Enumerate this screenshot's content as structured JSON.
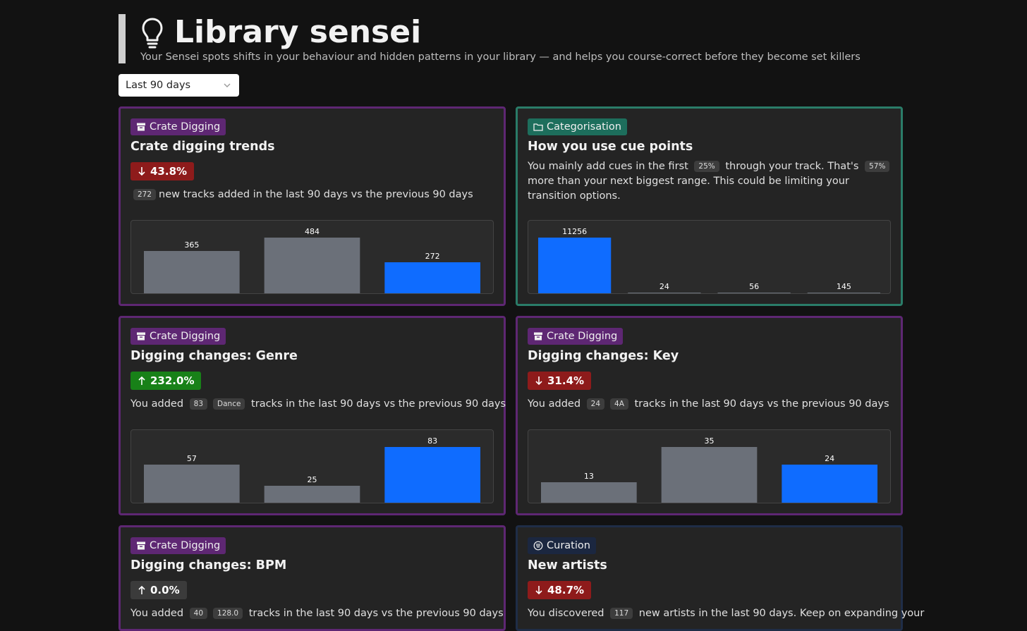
{
  "header": {
    "title": "Library sensei",
    "subtitle": "Your Sensei spots shifts in your behaviour and hidden patterns in your library — and helps you course-correct before they become set killers"
  },
  "period_select": {
    "value": "Last 90 days"
  },
  "colors": {
    "gray_bar": "#6b7079",
    "blue_bar": "#0f6cff",
    "purple": "#5e2773",
    "teal": "#1d6e5c"
  },
  "cards": [
    {
      "tag": "Crate Digging",
      "tag_icon": "archive-icon",
      "title": "Crate digging trends",
      "delta": {
        "direction": "down",
        "value": "43.8%"
      },
      "desc": {
        "pill": "272",
        "text": "new tracks added in the last 90 days vs the previous 90 days"
      },
      "chart_data": {
        "type": "bar",
        "values": [
          365,
          484,
          272
        ],
        "labels": [
          "365",
          "484",
          "272"
        ],
        "highlight_index": 2
      }
    },
    {
      "tag": "Categorisation",
      "tag_icon": "folder-icon",
      "title": "How you use cue points",
      "desc": {
        "t1": "You mainly add cues in the first",
        "p1": "25%",
        "t2": "through your track. That's",
        "p2": "57%",
        "t3": "more than your next biggest range. This could be limiting your transition options."
      },
      "chart_data": {
        "type": "bar",
        "values": [
          11256,
          24,
          56,
          145
        ],
        "labels": [
          "11256",
          "24",
          "56",
          "145"
        ],
        "highlight_index": 0
      }
    },
    {
      "tag": "Crate Digging",
      "tag_icon": "archive-icon",
      "title": "Digging changes: Genre",
      "delta": {
        "direction": "up",
        "value": "232.0%"
      },
      "desc": {
        "t1": "You added",
        "p1": "83",
        "p2": "Dance",
        "t2": "tracks in the last 90 days vs the previous 90 days"
      },
      "chart_data": {
        "type": "bar",
        "values": [
          57,
          25,
          83
        ],
        "labels": [
          "57",
          "25",
          "83"
        ],
        "highlight_index": 2
      }
    },
    {
      "tag": "Crate Digging",
      "tag_icon": "archive-icon",
      "title": "Digging changes: Key",
      "delta": {
        "direction": "down",
        "value": "31.4%"
      },
      "desc": {
        "t1": "You added",
        "p1": "24",
        "p2": "4A",
        "t2": "tracks in the last 90 days vs the previous 90 days"
      },
      "chart_data": {
        "type": "bar",
        "values": [
          13,
          35,
          24
        ],
        "labels": [
          "13",
          "35",
          "24"
        ],
        "highlight_index": 2
      }
    },
    {
      "tag": "Crate Digging",
      "tag_icon": "archive-icon",
      "title": "Digging changes: BPM",
      "delta": {
        "direction": "up",
        "value": "0.0%"
      },
      "desc": {
        "t1": "You added",
        "p1": "40",
        "p2": "128.0",
        "t2": "tracks in the last 90 days vs the previous 90 days"
      }
    },
    {
      "tag": "Curation",
      "tag_icon": "list-circle-icon",
      "title": "New artists",
      "delta": {
        "direction": "down",
        "value": "48.7%"
      },
      "desc": {
        "t1": "You discovered",
        "p1": "117",
        "t2": "new artists in the last 90 days. Keep on expanding your"
      }
    }
  ]
}
